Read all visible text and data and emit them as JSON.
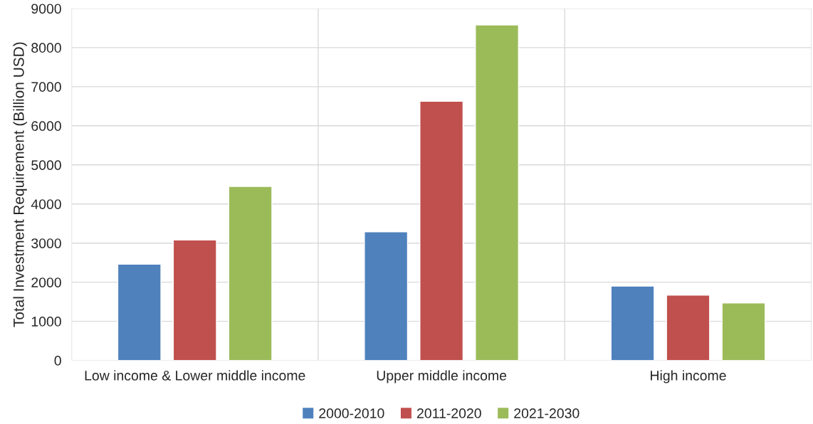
{
  "chart_data": {
    "type": "bar",
    "ylabel": "Total Investment Requirement (Billion USD)",
    "categories": [
      "Low income & Lower middle income",
      "Upper middle income",
      "High income"
    ],
    "series": [
      {
        "name": "2000-2010",
        "color": "#4f81bd",
        "values": [
          2460,
          3290,
          1900
        ]
      },
      {
        "name": "2011-2020",
        "color": "#c0504d",
        "values": [
          3080,
          6630,
          1670
        ]
      },
      {
        "name": "2021-2030",
        "color": "#9bbb59",
        "values": [
          4450,
          8580,
          1470
        ]
      }
    ],
    "ylim": [
      0,
      9000
    ],
    "yticks": [
      0,
      1000,
      2000,
      3000,
      4000,
      5000,
      6000,
      7000,
      8000,
      9000
    ],
    "grid": true,
    "legend": "bottom"
  }
}
